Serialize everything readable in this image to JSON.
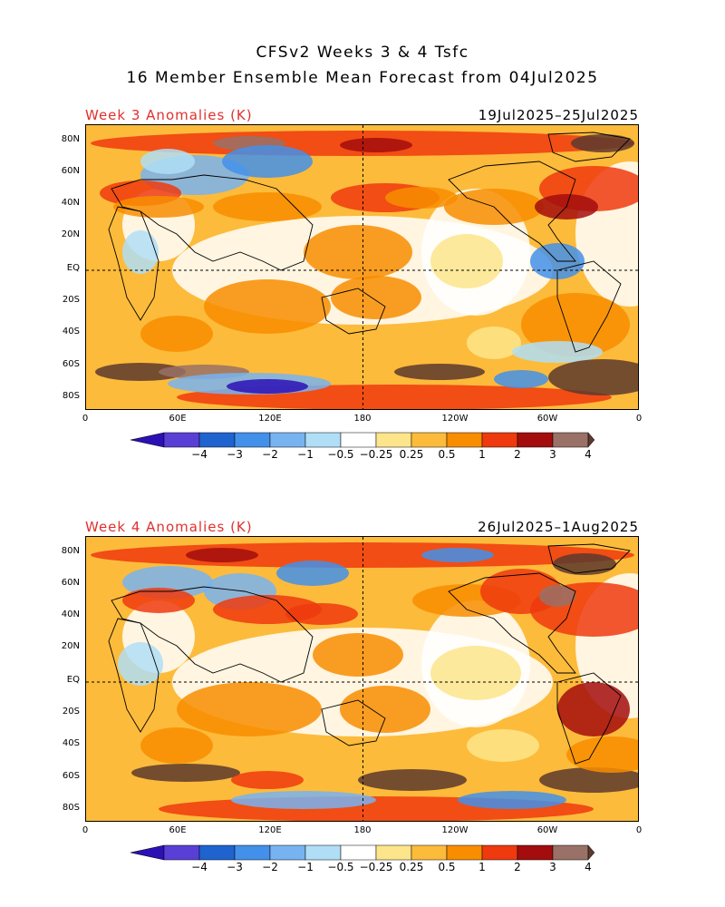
{
  "header": {
    "title_line1": "CFSv2 Weeks 3 & 4 Tsfc",
    "title_line2": "16 Member Ensemble Mean Forecast from 04Jul2025"
  },
  "panels": [
    {
      "title": "Week 3 Anomalies (K)",
      "dates": "19Jul2025–25Jul2025"
    },
    {
      "title": "Week 4 Anomalies (K)",
      "dates": "26Jul2025–1Aug2025"
    }
  ],
  "axes": {
    "lat_labels": [
      "80N",
      "60N",
      "40N",
      "20N",
      "EQ",
      "20S",
      "40S",
      "60S",
      "80S"
    ],
    "lon_labels": [
      "0",
      "60E",
      "120E",
      "180",
      "120W",
      "60W",
      "0"
    ]
  },
  "colorbar": {
    "labels": [
      "−4",
      "−3",
      "−2",
      "−1",
      "−0.5",
      "−0.25",
      "0.25",
      "0.5",
      "1",
      "2",
      "3",
      "4"
    ],
    "colors": [
      "#2b10b5",
      "#5a3fd6",
      "#1f63cf",
      "#4390ea",
      "#78b3f1",
      "#b0def6",
      "#ffffff",
      "#fde58b",
      "#fdbb3b",
      "#f88d00",
      "#ee3a0e",
      "#a30d0d",
      "#997166",
      "#5c3a2e"
    ]
  }
}
